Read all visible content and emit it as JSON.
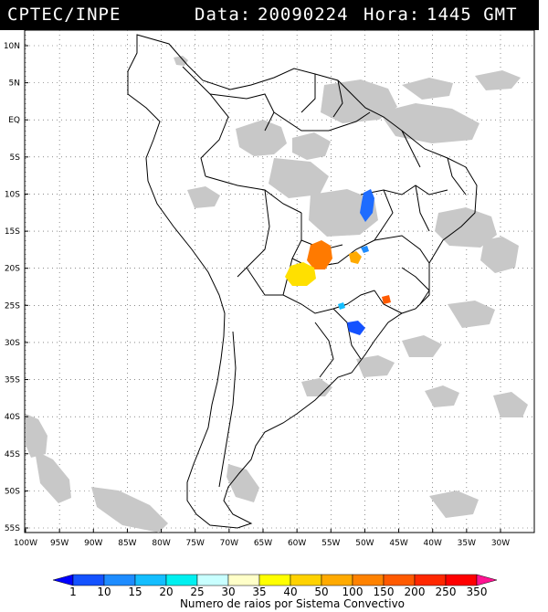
{
  "header": {
    "agency": "CPTEC/INPE",
    "date_label": "Data:",
    "date": "20090224",
    "time_label": "Hora:",
    "time": "1445 GMT"
  },
  "map": {
    "lat_labels": [
      "10N",
      "5N",
      "EQ",
      "5S",
      "10S",
      "15S",
      "20S",
      "25S",
      "30S",
      "35S",
      "40S",
      "45S",
      "50S",
      "55S"
    ],
    "lon_labels": [
      "100W",
      "95W",
      "90W",
      "85W",
      "80W",
      "75W",
      "70W",
      "65W",
      "60W",
      "55W",
      "50W",
      "45W",
      "40W",
      "35W",
      "30W"
    ],
    "cloud_color": "#c8c8c8",
    "coast_color": "#000000"
  },
  "legend": {
    "values": [
      "1",
      "10",
      "15",
      "20",
      "25",
      "30",
      "35",
      "40",
      "50",
      "100",
      "150",
      "200",
      "250",
      "350"
    ],
    "colors": [
      "#0000ff",
      "#1452ff",
      "#1e8cff",
      "#14beff",
      "#00f0f0",
      "#c8ffff",
      "#ffffc8",
      "#ffff00",
      "#ffd200",
      "#ffaa00",
      "#ff8200",
      "#ff5a00",
      "#ff2800",
      "#ff0000",
      "#ff1493"
    ],
    "title": "Numero de raios por Sistema Convectivo"
  },
  "lightning_systems": [
    {
      "color": "#ff7a00",
      "level": "100-150"
    },
    {
      "color": "#ffd200",
      "level": "40-50"
    },
    {
      "color": "#1e6cff",
      "level": "10-15"
    },
    {
      "color": "#ff5a00",
      "level": "150-200"
    },
    {
      "color": "#1452ff",
      "level": "1-10"
    }
  ]
}
